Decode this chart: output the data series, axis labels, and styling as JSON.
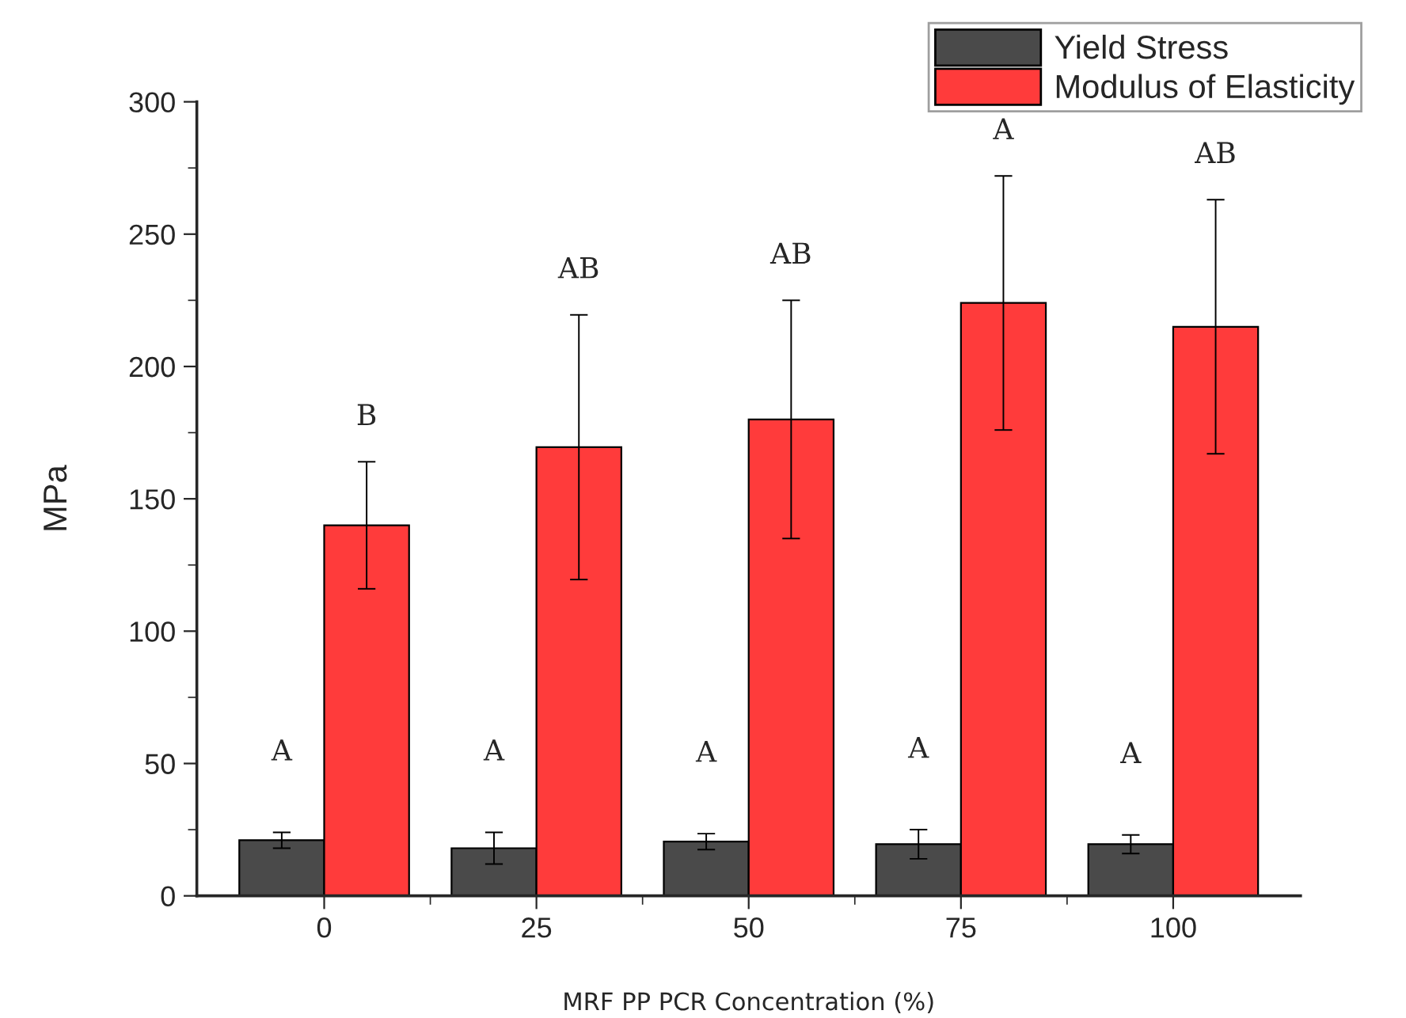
{
  "chart_data": {
    "type": "bar",
    "xlabel": "MRF PP PCR Concentration (%)",
    "ylabel": "MPa",
    "categories": [
      "0",
      "25",
      "50",
      "75",
      "100"
    ],
    "series": [
      {
        "name": "Yield Stress",
        "color": "#4a4a4a",
        "values": [
          21,
          18,
          20.5,
          19.5,
          19.5
        ],
        "errors": [
          3,
          6,
          3,
          5.5,
          3.5
        ]
      },
      {
        "name": "Modulus of Elasticity",
        "color": "#ff3b3b",
        "values": [
          140,
          169.5,
          180,
          224,
          215
        ],
        "errors": [
          24,
          50,
          45,
          48,
          48
        ]
      }
    ],
    "ylim": [
      0,
      300
    ],
    "yticks": [
      0,
      50,
      100,
      150,
      200,
      250,
      300
    ],
    "annotations": [
      "A",
      "B",
      "A",
      "AB",
      "A",
      "AB",
      "A",
      "A",
      "A",
      "AB"
    ],
    "legend": "top right",
    "grid": false
  }
}
